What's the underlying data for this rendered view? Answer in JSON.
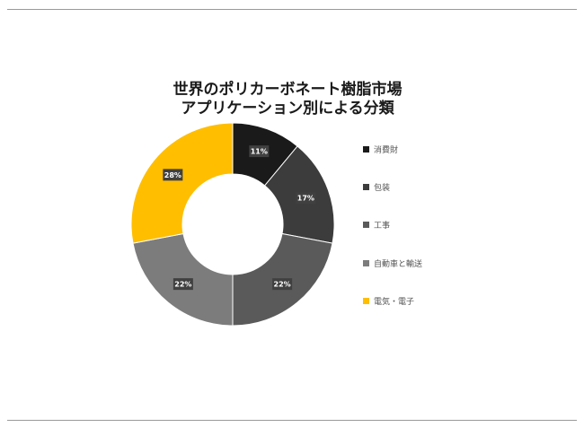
{
  "chart_data": {
    "type": "pie",
    "title_lines": [
      "世界のポリカーボネート樹脂市場",
      "アプリケーション別による分類"
    ],
    "donut": true,
    "slices": [
      {
        "label": "消費財",
        "value": 11,
        "display": "11%",
        "color": "#1a1a1a"
      },
      {
        "label": "包装",
        "value": 17,
        "display": "17%",
        "color": "#3c3c3c"
      },
      {
        "label": "工事",
        "value": 22,
        "display": "22%",
        "color": "#5a5a5a"
      },
      {
        "label": "自動車と輸送",
        "value": 22,
        "display": "22%",
        "color": "#7c7c7c"
      },
      {
        "label": "電気・電子",
        "value": 28,
        "display": "28%",
        "color": "#ffbe00"
      }
    ],
    "legend_position": "right"
  }
}
